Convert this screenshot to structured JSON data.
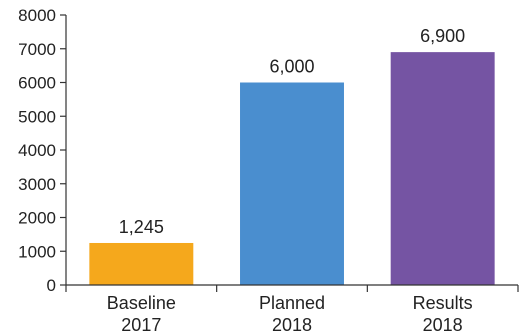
{
  "chart_data": {
    "type": "bar",
    "categories": [
      [
        "Baseline",
        "2017"
      ],
      [
        "Planned",
        "2018"
      ],
      [
        "Results",
        "2018"
      ]
    ],
    "values": [
      1245,
      6000,
      6900
    ],
    "data_labels": [
      "1,245",
      "6,000",
      "6,900"
    ],
    "bar_colors": [
      "#f5a81c",
      "#4a8ecf",
      "#7554a3"
    ],
    "title": "",
    "xlabel": "",
    "ylabel": "",
    "ylim": [
      0,
      8000
    ],
    "yticks": [
      0,
      1000,
      2000,
      3000,
      4000,
      5000,
      6000,
      7000,
      8000
    ],
    "grid": false,
    "legend": "none"
  }
}
